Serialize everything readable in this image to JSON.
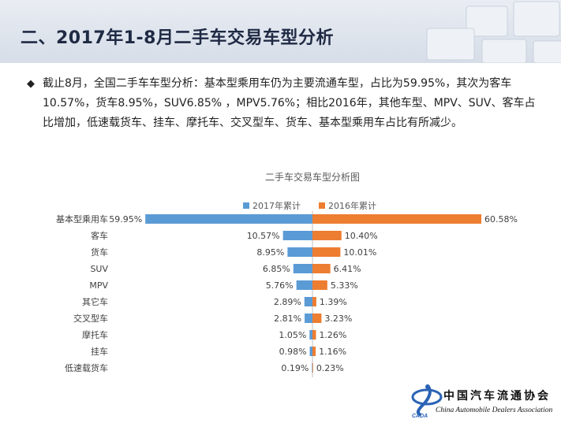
{
  "page": {
    "title": "二、2017年1-8月二手车交易车型分析",
    "bullet_symbol": "◆",
    "paragraph": "截止8月，全国二手车车型分析：基本型乘用车仍为主要流通车型，占比为59.95%，其次为客车10.57%，货车8.95%，SUV6.85% ，MPV5.76%；相比2016年，其他车型、MPV、SUV、客车占比增加，低速载货车、挂车、摩托车、交叉型车、货车、基本型乘用车占比有所减少。"
  },
  "logo": {
    "name_cn": "中国汽车流通协会",
    "name_en": "China Automobile Dealers Association",
    "abbr": "CADA"
  },
  "chart_data": {
    "type": "bar",
    "orientation": "horizontal-butterfly",
    "title": "二手车交易车型分析图",
    "legend_position": "top",
    "categories": [
      "基本型乘用车",
      "客车",
      "货车",
      "SUV",
      "MPV",
      "其它车",
      "交叉型车",
      "摩托车",
      "挂车",
      "低速载货车"
    ],
    "series": [
      {
        "name": "2017年累计",
        "color": "#5b9bd5",
        "values": [
          59.95,
          10.57,
          8.95,
          6.85,
          5.76,
          2.89,
          2.81,
          1.05,
          0.98,
          0.19
        ],
        "labels": [
          "59.95%",
          "10.57%",
          "8.95%",
          "6.85%",
          "5.76%",
          "2.89%",
          "2.81%",
          "1.05%",
          "0.98%",
          "0.19%"
        ]
      },
      {
        "name": "2016年累计",
        "color": "#ed7d31",
        "values": [
          60.58,
          10.4,
          10.01,
          6.41,
          5.33,
          1.39,
          3.23,
          1.26,
          1.16,
          0.23
        ],
        "labels": [
          "60.58%",
          "10.40%",
          "10.01%",
          "6.41%",
          "5.33%",
          "1.39%",
          "3.23%",
          "1.26%",
          "1.16%",
          "0.23%"
        ]
      }
    ],
    "grid": false
  }
}
